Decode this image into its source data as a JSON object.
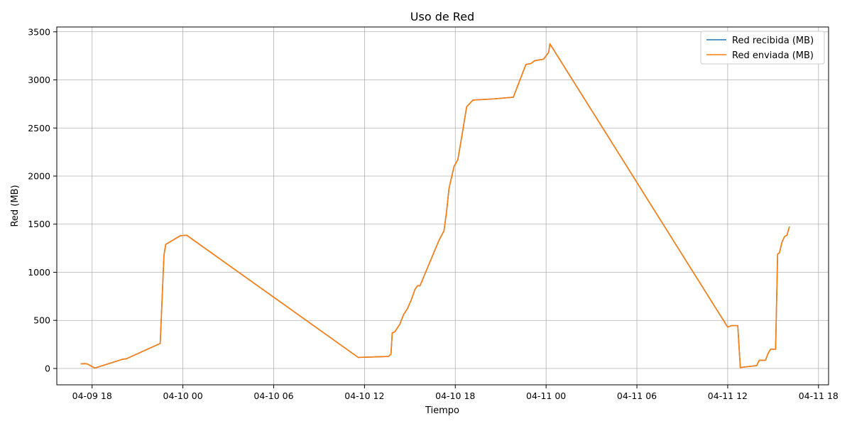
{
  "chart_data": {
    "type": "line",
    "title": "Uso de Red",
    "xlabel": "Tiempo",
    "ylabel": "Red (MB)",
    "xaxis_type": "datetime",
    "xlim": [
      "2025-04-09 15:40",
      "2025-04-11 18:40"
    ],
    "ylim": [
      -170,
      3550
    ],
    "x_ticks": [
      {
        "label": "04-09 18",
        "t": "2025-04-09 18:00"
      },
      {
        "label": "04-10 00",
        "t": "2025-04-10 00:00"
      },
      {
        "label": "04-10 06",
        "t": "2025-04-10 06:00"
      },
      {
        "label": "04-10 12",
        "t": "2025-04-10 12:00"
      },
      {
        "label": "04-10 18",
        "t": "2025-04-10 18:00"
      },
      {
        "label": "04-11 00",
        "t": "2025-04-11 00:00"
      },
      {
        "label": "04-11 06",
        "t": "2025-04-11 06:00"
      },
      {
        "label": "04-11 12",
        "t": "2025-04-11 12:00"
      },
      {
        "label": "04-11 18",
        "t": "2025-04-11 18:00"
      }
    ],
    "y_ticks": [
      0,
      500,
      1000,
      1500,
      2000,
      2500,
      3000,
      3500
    ],
    "grid": true,
    "legend_position": "top-right",
    "series": [
      {
        "name": "Red recibida (MB)",
        "color": "#1f77b4",
        "points": [
          [
            "2025-04-09 17:15",
            48
          ],
          [
            "2025-04-09 17:30",
            50
          ],
          [
            "2025-04-09 17:40",
            48
          ],
          [
            "2025-04-09 18:00",
            20
          ],
          [
            "2025-04-09 18:10",
            5
          ],
          [
            "2025-04-09 18:20",
            12
          ],
          [
            "2025-04-09 20:00",
            95
          ],
          [
            "2025-04-09 20:15",
            100
          ],
          [
            "2025-04-09 22:30",
            260
          ],
          [
            "2025-04-09 22:45",
            1180
          ],
          [
            "2025-04-09 22:52",
            1290
          ],
          [
            "2025-04-09 23:50",
            1380
          ],
          [
            "2025-04-10 00:15",
            1385
          ],
          [
            "2025-04-10 11:35",
            115
          ],
          [
            "2025-04-10 13:35",
            125
          ],
          [
            "2025-04-10 13:45",
            150
          ],
          [
            "2025-04-10 13:50",
            370
          ],
          [
            "2025-04-10 14:00",
            380
          ],
          [
            "2025-04-10 14:20",
            460
          ],
          [
            "2025-04-10 14:35",
            560
          ],
          [
            "2025-04-10 14:50",
            620
          ],
          [
            "2025-04-10 15:05",
            710
          ],
          [
            "2025-04-10 15:20",
            820
          ],
          [
            "2025-04-10 15:30",
            860
          ],
          [
            "2025-04-10 15:40",
            860
          ],
          [
            "2025-04-10 16:55",
            1330
          ],
          [
            "2025-04-10 17:15",
            1430
          ],
          [
            "2025-04-10 17:25",
            1620
          ],
          [
            "2025-04-10 17:35",
            1870
          ],
          [
            "2025-04-10 17:55",
            2100
          ],
          [
            "2025-04-10 18:10",
            2170
          ],
          [
            "2025-04-10 18:25",
            2400
          ],
          [
            "2025-04-10 18:45",
            2720
          ],
          [
            "2025-04-10 19:10",
            2790
          ],
          [
            "2025-04-10 20:20",
            2800
          ],
          [
            "2025-04-10 21:50",
            2820
          ],
          [
            "2025-04-10 22:40",
            3160
          ],
          [
            "2025-04-10 23:00",
            3170
          ],
          [
            "2025-04-10 23:15",
            3200
          ],
          [
            "2025-04-10 23:50",
            3215
          ],
          [
            "2025-04-11 00:10",
            3285
          ],
          [
            "2025-04-11 00:15",
            3375
          ],
          [
            "2025-04-11 12:00",
            430
          ],
          [
            "2025-04-11 12:15",
            445
          ],
          [
            "2025-04-11 12:25",
            445
          ],
          [
            "2025-04-11 12:40",
            445
          ],
          [
            "2025-04-11 12:50",
            10
          ],
          [
            "2025-04-11 13:55",
            30
          ],
          [
            "2025-04-11 14:05",
            85
          ],
          [
            "2025-04-11 14:30",
            85
          ],
          [
            "2025-04-11 14:40",
            155
          ],
          [
            "2025-04-11 14:50",
            200
          ],
          [
            "2025-04-11 15:10",
            200
          ],
          [
            "2025-04-11 15:18",
            1190
          ],
          [
            "2025-04-11 15:25",
            1200
          ],
          [
            "2025-04-11 15:35",
            1310
          ],
          [
            "2025-04-11 15:45",
            1370
          ],
          [
            "2025-04-11 15:55",
            1385
          ],
          [
            "2025-04-11 16:05",
            1475
          ]
        ]
      },
      {
        "name": "Red enviada (MB)",
        "color": "#ff7f0e",
        "points": [
          [
            "2025-04-09 17:15",
            48
          ],
          [
            "2025-04-09 17:30",
            50
          ],
          [
            "2025-04-09 17:40",
            48
          ],
          [
            "2025-04-09 18:00",
            20
          ],
          [
            "2025-04-09 18:10",
            5
          ],
          [
            "2025-04-09 18:20",
            12
          ],
          [
            "2025-04-09 20:00",
            95
          ],
          [
            "2025-04-09 20:15",
            100
          ],
          [
            "2025-04-09 22:30",
            260
          ],
          [
            "2025-04-09 22:45",
            1180
          ],
          [
            "2025-04-09 22:52",
            1290
          ],
          [
            "2025-04-09 23:50",
            1380
          ],
          [
            "2025-04-10 00:15",
            1385
          ],
          [
            "2025-04-10 11:35",
            115
          ],
          [
            "2025-04-10 13:35",
            125
          ],
          [
            "2025-04-10 13:45",
            150
          ],
          [
            "2025-04-10 13:50",
            370
          ],
          [
            "2025-04-10 14:00",
            380
          ],
          [
            "2025-04-10 14:20",
            460
          ],
          [
            "2025-04-10 14:35",
            560
          ],
          [
            "2025-04-10 14:50",
            620
          ],
          [
            "2025-04-10 15:05",
            710
          ],
          [
            "2025-04-10 15:20",
            820
          ],
          [
            "2025-04-10 15:30",
            860
          ],
          [
            "2025-04-10 15:40",
            860
          ],
          [
            "2025-04-10 16:55",
            1330
          ],
          [
            "2025-04-10 17:15",
            1430
          ],
          [
            "2025-04-10 17:25",
            1620
          ],
          [
            "2025-04-10 17:35",
            1870
          ],
          [
            "2025-04-10 17:55",
            2100
          ],
          [
            "2025-04-10 18:10",
            2170
          ],
          [
            "2025-04-10 18:25",
            2400
          ],
          [
            "2025-04-10 18:45",
            2720
          ],
          [
            "2025-04-10 19:10",
            2790
          ],
          [
            "2025-04-10 20:20",
            2800
          ],
          [
            "2025-04-10 21:50",
            2820
          ],
          [
            "2025-04-10 22:40",
            3160
          ],
          [
            "2025-04-10 23:00",
            3170
          ],
          [
            "2025-04-10 23:15",
            3200
          ],
          [
            "2025-04-10 23:50",
            3215
          ],
          [
            "2025-04-11 00:10",
            3285
          ],
          [
            "2025-04-11 00:15",
            3375
          ],
          [
            "2025-04-11 12:00",
            430
          ],
          [
            "2025-04-11 12:15",
            445
          ],
          [
            "2025-04-11 12:25",
            445
          ],
          [
            "2025-04-11 12:40",
            445
          ],
          [
            "2025-04-11 12:50",
            10
          ],
          [
            "2025-04-11 13:55",
            30
          ],
          [
            "2025-04-11 14:05",
            85
          ],
          [
            "2025-04-11 14:30",
            85
          ],
          [
            "2025-04-11 14:40",
            155
          ],
          [
            "2025-04-11 14:50",
            200
          ],
          [
            "2025-04-11 15:10",
            200
          ],
          [
            "2025-04-11 15:18",
            1190
          ],
          [
            "2025-04-11 15:25",
            1200
          ],
          [
            "2025-04-11 15:35",
            1310
          ],
          [
            "2025-04-11 15:45",
            1370
          ],
          [
            "2025-04-11 15:55",
            1385
          ],
          [
            "2025-04-11 16:05",
            1475
          ]
        ]
      }
    ]
  }
}
